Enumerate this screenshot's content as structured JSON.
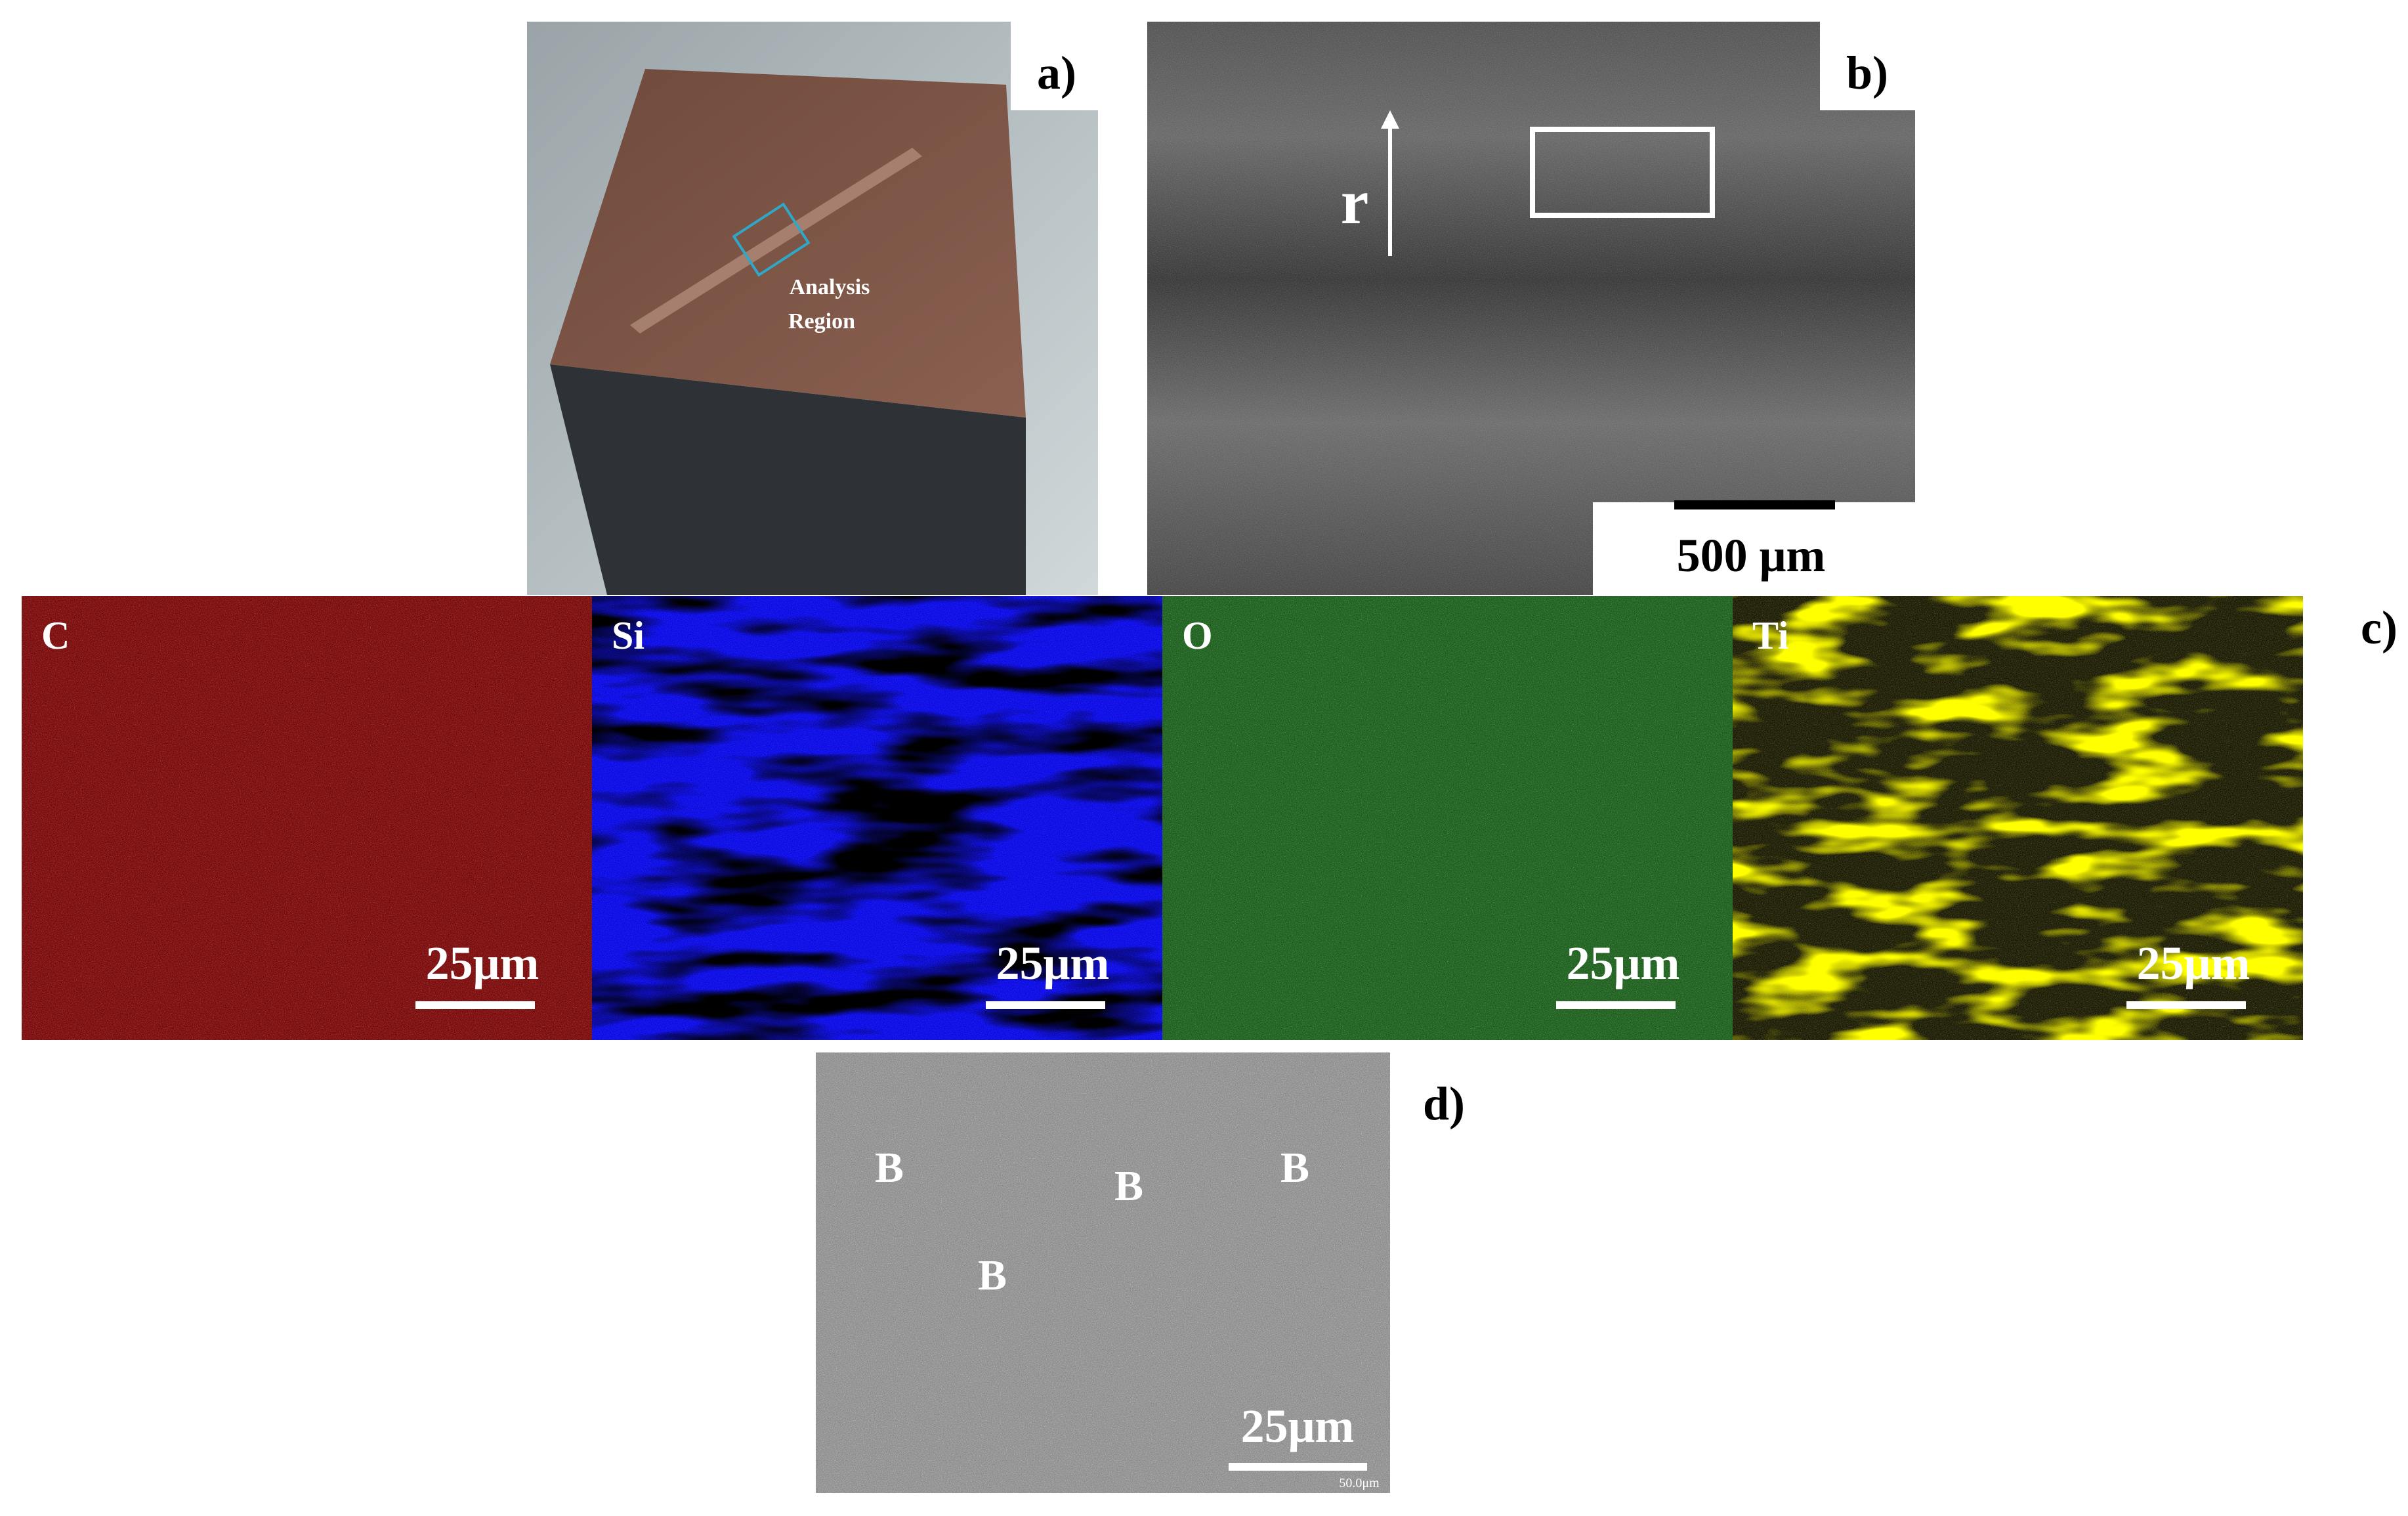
{
  "panels": {
    "a": {
      "label": "a)",
      "annotation": [
        "Analysis",
        "Region"
      ]
    },
    "b": {
      "label": "b)",
      "direction_label": "r",
      "scale_bar": "500 μm"
    },
    "c": {
      "label": "c)",
      "maps": [
        {
          "element": "C",
          "scale_bar": "25μm"
        },
        {
          "element": "Si",
          "scale_bar": "25μm"
        },
        {
          "element": "O",
          "scale_bar": "25μm"
        },
        {
          "element": "Ti",
          "scale_bar": "25μm"
        }
      ]
    },
    "d": {
      "label": "d)",
      "markers": [
        "B",
        "B",
        "B",
        "B"
      ],
      "scale_bar": "25μm",
      "instrument_scale": "50.0μm"
    }
  }
}
